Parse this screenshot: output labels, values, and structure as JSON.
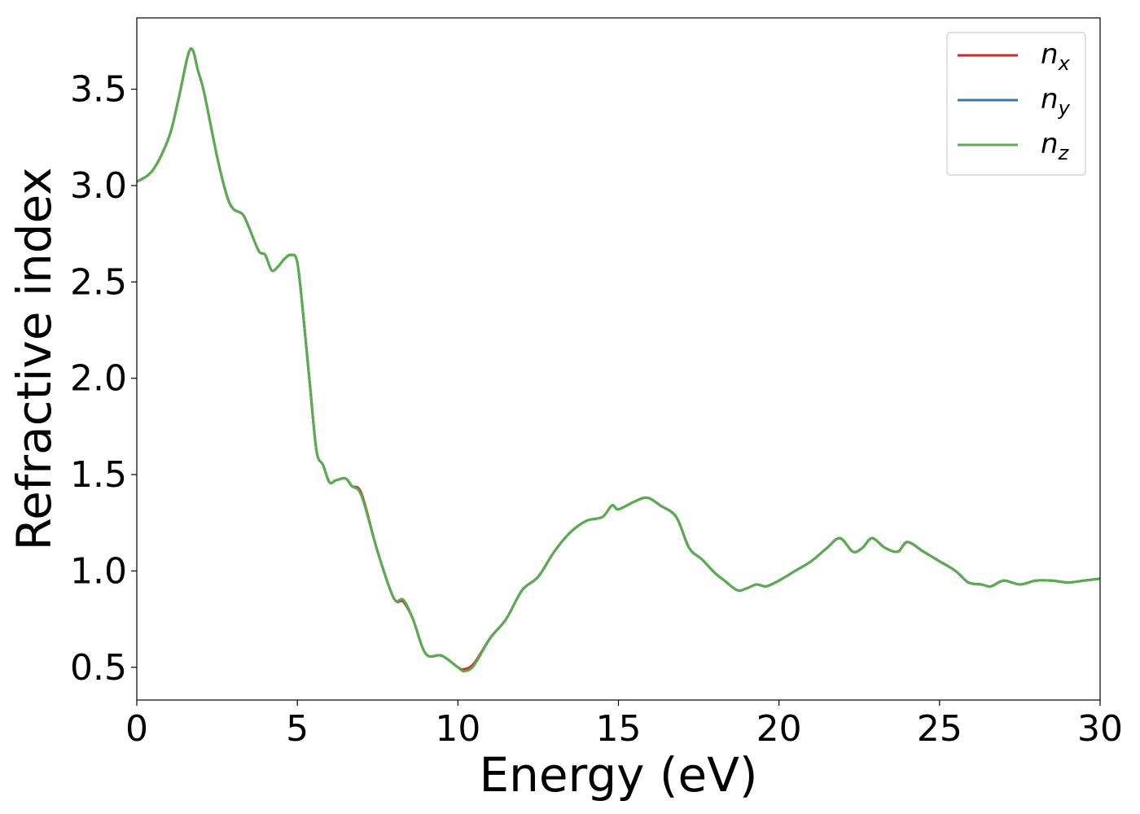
{
  "chart_data": {
    "type": "line",
    "title": "",
    "xlabel": "Energy (eV)",
    "ylabel": "Refractive index",
    "xlim": [
      0,
      30
    ],
    "ylim": [
      0.33,
      3.87
    ],
    "xticks": [
      0,
      5,
      10,
      15,
      20,
      25,
      30
    ],
    "xtick_labels": [
      "0",
      "5",
      "10",
      "15",
      "20",
      "25",
      "30"
    ],
    "yticks": [
      0.5,
      1.0,
      1.5,
      2.0,
      2.5,
      3.0,
      3.5
    ],
    "ytick_labels": [
      "0.5",
      "1.0",
      "1.5",
      "2.0",
      "2.5",
      "3.0",
      "3.5"
    ],
    "grid": false,
    "legend_position": "top-right",
    "x": [
      0,
      0.5,
      1.0,
      1.3,
      1.6,
      1.75,
      1.9,
      2.1,
      2.5,
      2.8,
      3.0,
      3.3,
      3.5,
      3.8,
      4.0,
      4.2,
      4.4,
      4.6,
      4.8,
      5.0,
      5.2,
      5.4,
      5.6,
      5.8,
      6.0,
      6.2,
      6.5,
      6.7,
      7.0,
      7.5,
      8.0,
      8.3,
      8.6,
      9.0,
      9.5,
      10.0,
      10.2,
      10.5,
      11.0,
      11.5,
      12.0,
      12.5,
      13.0,
      13.5,
      14.0,
      14.5,
      14.8,
      15.0,
      15.5,
      15.9,
      16.3,
      16.8,
      17.2,
      17.6,
      18.0,
      18.3,
      18.7,
      19.0,
      19.3,
      19.6,
      20.0,
      20.5,
      21.0,
      21.5,
      21.9,
      22.3,
      22.6,
      22.9,
      23.3,
      23.7,
      24.0,
      24.5,
      25.0,
      25.5,
      25.9,
      26.3,
      26.6,
      27.0,
      27.5,
      28.0,
      28.5,
      29.0,
      29.5,
      30.0
    ],
    "series": [
      {
        "name": "n_x",
        "legend_main": "n",
        "legend_sub": "x",
        "color": "#d62728",
        "values": [
          3.02,
          3.08,
          3.25,
          3.45,
          3.68,
          3.7,
          3.6,
          3.48,
          3.15,
          2.95,
          2.88,
          2.85,
          2.78,
          2.66,
          2.64,
          2.56,
          2.58,
          2.62,
          2.64,
          2.6,
          2.3,
          1.95,
          1.62,
          1.55,
          1.46,
          1.47,
          1.48,
          1.44,
          1.4,
          1.1,
          0.86,
          0.84,
          0.75,
          0.57,
          0.56,
          0.5,
          0.49,
          0.52,
          0.65,
          0.75,
          0.9,
          0.97,
          1.1,
          1.2,
          1.26,
          1.28,
          1.34,
          1.32,
          1.36,
          1.38,
          1.34,
          1.28,
          1.12,
          1.06,
          0.99,
          0.95,
          0.9,
          0.91,
          0.93,
          0.92,
          0.95,
          1.0,
          1.05,
          1.12,
          1.17,
          1.1,
          1.12,
          1.17,
          1.12,
          1.1,
          1.15,
          1.1,
          1.05,
          1.0,
          0.94,
          0.93,
          0.92,
          0.95,
          0.93,
          0.95,
          0.95,
          0.94,
          0.95,
          0.96
        ]
      },
      {
        "name": "n_y",
        "legend_main": "n",
        "legend_sub": "y",
        "color": "#3b75af",
        "values": [
          3.02,
          3.08,
          3.25,
          3.45,
          3.68,
          3.7,
          3.6,
          3.48,
          3.15,
          2.95,
          2.88,
          2.85,
          2.78,
          2.66,
          2.64,
          2.56,
          2.58,
          2.62,
          2.64,
          2.6,
          2.3,
          1.95,
          1.62,
          1.55,
          1.46,
          1.47,
          1.48,
          1.44,
          1.39,
          1.1,
          0.86,
          0.85,
          0.75,
          0.57,
          0.56,
          0.5,
          0.48,
          0.51,
          0.65,
          0.75,
          0.9,
          0.97,
          1.1,
          1.2,
          1.26,
          1.28,
          1.34,
          1.32,
          1.36,
          1.38,
          1.34,
          1.28,
          1.12,
          1.06,
          0.99,
          0.95,
          0.9,
          0.91,
          0.93,
          0.92,
          0.95,
          1.0,
          1.05,
          1.12,
          1.17,
          1.1,
          1.12,
          1.17,
          1.12,
          1.1,
          1.15,
          1.1,
          1.05,
          1.0,
          0.94,
          0.93,
          0.92,
          0.95,
          0.93,
          0.95,
          0.95,
          0.94,
          0.95,
          0.96
        ]
      },
      {
        "name": "n_z",
        "legend_main": "n",
        "legend_sub": "z",
        "color": "#5aad4e",
        "values": [
          3.02,
          3.08,
          3.25,
          3.45,
          3.68,
          3.7,
          3.6,
          3.48,
          3.15,
          2.95,
          2.88,
          2.85,
          2.78,
          2.66,
          2.64,
          2.56,
          2.58,
          2.62,
          2.64,
          2.6,
          2.3,
          1.95,
          1.62,
          1.55,
          1.46,
          1.47,
          1.48,
          1.44,
          1.39,
          1.1,
          0.86,
          0.85,
          0.75,
          0.57,
          0.56,
          0.5,
          0.48,
          0.51,
          0.65,
          0.75,
          0.9,
          0.97,
          1.1,
          1.2,
          1.26,
          1.28,
          1.34,
          1.32,
          1.36,
          1.38,
          1.34,
          1.28,
          1.12,
          1.06,
          0.99,
          0.95,
          0.9,
          0.91,
          0.93,
          0.92,
          0.95,
          1.0,
          1.05,
          1.12,
          1.17,
          1.1,
          1.12,
          1.17,
          1.12,
          1.1,
          1.15,
          1.1,
          1.05,
          1.0,
          0.94,
          0.93,
          0.92,
          0.95,
          0.93,
          0.95,
          0.95,
          0.94,
          0.95,
          0.96
        ]
      }
    ]
  }
}
